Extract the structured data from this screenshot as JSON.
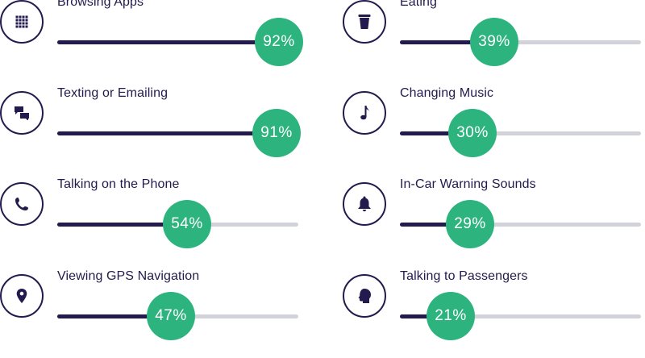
{
  "colors": {
    "dark": "#231a4d",
    "track": "#d2d2db",
    "accent": "#2db47e"
  },
  "chart_data": {
    "type": "bar",
    "value_range": [
      0,
      100
    ],
    "unit": "%",
    "items": [
      {
        "label": "Browsing Apps",
        "value": 92,
        "value_label": "92%",
        "icon": "app-grid-icon"
      },
      {
        "label": "Texting or Emailing",
        "value": 91,
        "value_label": "91%",
        "icon": "chat-bubbles-icon"
      },
      {
        "label": "Talking on the Phone",
        "value": 54,
        "value_label": "54%",
        "icon": "phone-icon"
      },
      {
        "label": "Viewing GPS Navigation",
        "value": 47,
        "value_label": "47%",
        "icon": "map-pin-icon"
      },
      {
        "label": "Eating",
        "value": 39,
        "value_label": "39%",
        "icon": "cup-icon"
      },
      {
        "label": "Changing Music",
        "value": 30,
        "value_label": "30%",
        "icon": "music-note-icon"
      },
      {
        "label": "In-Car Warning Sounds",
        "value": 29,
        "value_label": "29%",
        "icon": "bell-icon"
      },
      {
        "label": "Talking to Passengers",
        "value": 21,
        "value_label": "21%",
        "icon": "head-profile-icon"
      }
    ]
  }
}
